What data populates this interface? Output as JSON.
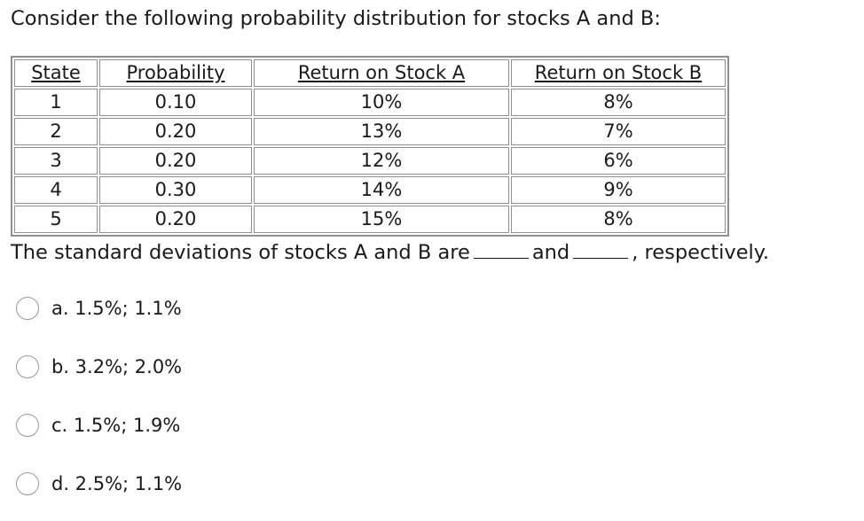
{
  "question": "Consider the following probability distribution for stocks A and B:",
  "table": {
    "headers": [
      "State",
      "Probability",
      "Return on Stock A",
      "Return on Stock B"
    ],
    "rows": [
      [
        "1",
        "0.10",
        "10%",
        "8%"
      ],
      [
        "2",
        "0.20",
        "13%",
        "7%"
      ],
      [
        "3",
        "0.20",
        "12%",
        "6%"
      ],
      [
        "4",
        "0.30",
        "14%",
        "9%"
      ],
      [
        "5",
        "0.20",
        "15%",
        "8%"
      ]
    ]
  },
  "statement": {
    "part1": "The standard deviations of stocks A and B are",
    "part2": "and",
    "part3": ", respectively."
  },
  "options": [
    {
      "label": "a. 1.5%; 1.1%"
    },
    {
      "label": "b. 3.2%; 2.0%"
    },
    {
      "label": "c. 1.5%; 1.9%"
    },
    {
      "label": "d. 2.5%; 1.1%"
    }
  ]
}
